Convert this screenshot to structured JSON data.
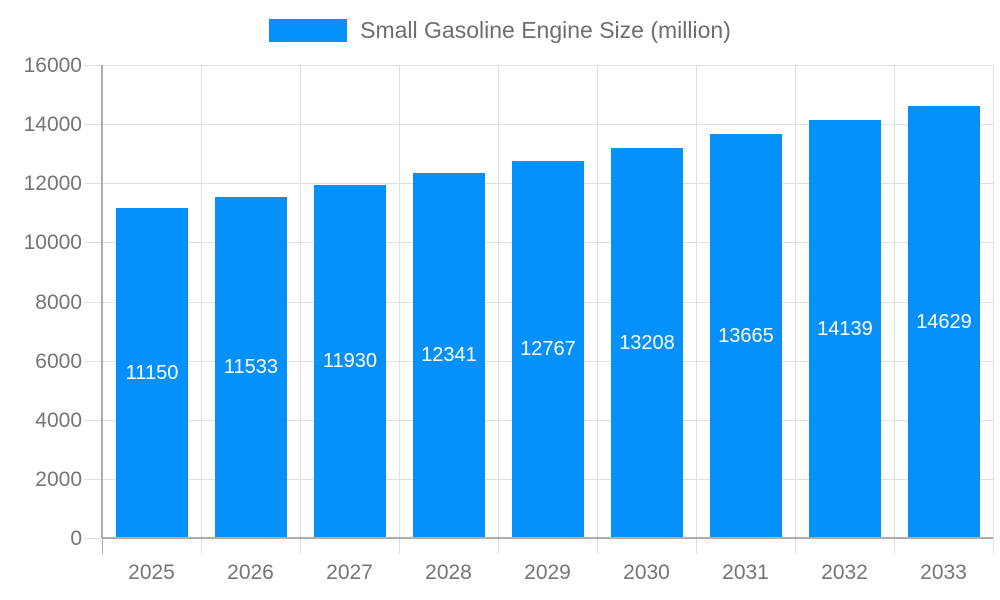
{
  "chart_data": {
    "type": "bar",
    "title": "",
    "legend": {
      "label": "Small Gasoline Engine Size (million)",
      "position": "top-center"
    },
    "categories": [
      "2025",
      "2026",
      "2027",
      "2028",
      "2029",
      "2030",
      "2031",
      "2032",
      "2033"
    ],
    "series": [
      {
        "name": "Small Gasoline Engine Size (million)",
        "values": [
          11150,
          11533,
          11930,
          12341,
          12767,
          13208,
          13665,
          14139,
          14629
        ]
      }
    ],
    "xlabel": "",
    "ylabel": "",
    "ylim": [
      0,
      16000
    ],
    "yticks": [
      0,
      2000,
      4000,
      6000,
      8000,
      10000,
      12000,
      14000,
      16000
    ],
    "grid": true,
    "value_label_position": "inside-center",
    "colors": {
      "bar": "#0590fb",
      "value_text": "#ffffff",
      "axis_text": "#757575",
      "legend_text": "#6e6e6e",
      "gridline": "#e0e0e0",
      "axis_line": "#adadad",
      "background": "#ffffff"
    }
  }
}
